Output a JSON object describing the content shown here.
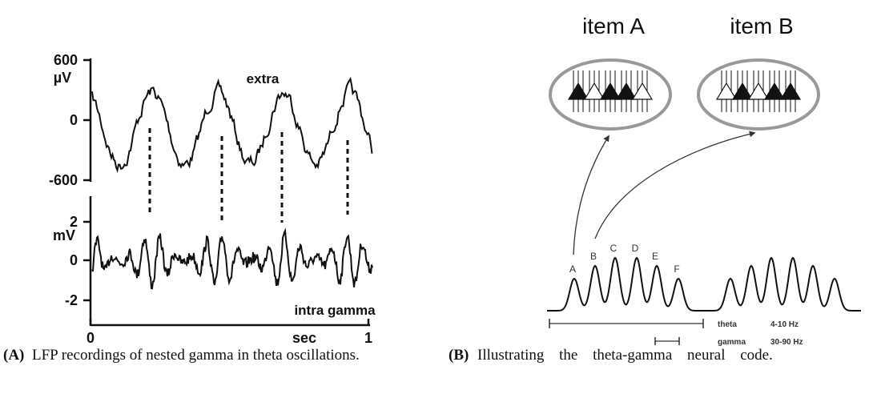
{
  "panel_a": {
    "top_yticks": [
      "600",
      "0",
      "-600"
    ],
    "top_unit": "µV",
    "top_label": "extra",
    "bottom_yticks": [
      "2",
      "0",
      "-2"
    ],
    "bottom_unit": "mV",
    "bottom_label": "intra gamma",
    "xticks": [
      "0",
      "1"
    ],
    "xlabel": "sec",
    "caption_tag": "(A)",
    "caption": "LFP recordings of nested gamma in theta oscillations."
  },
  "panel_b": {
    "items": [
      "item A",
      "item B"
    ],
    "peak_labels": [
      "A",
      "B",
      "C",
      "D",
      "E",
      "F"
    ],
    "legend": [
      {
        "name": "theta",
        "range": "4-10 Hz"
      },
      {
        "name": "gamma",
        "range": "30-90 Hz"
      }
    ],
    "caption_tag": "(B)",
    "caption": "Illustrating the theta-gamma neural code."
  }
}
